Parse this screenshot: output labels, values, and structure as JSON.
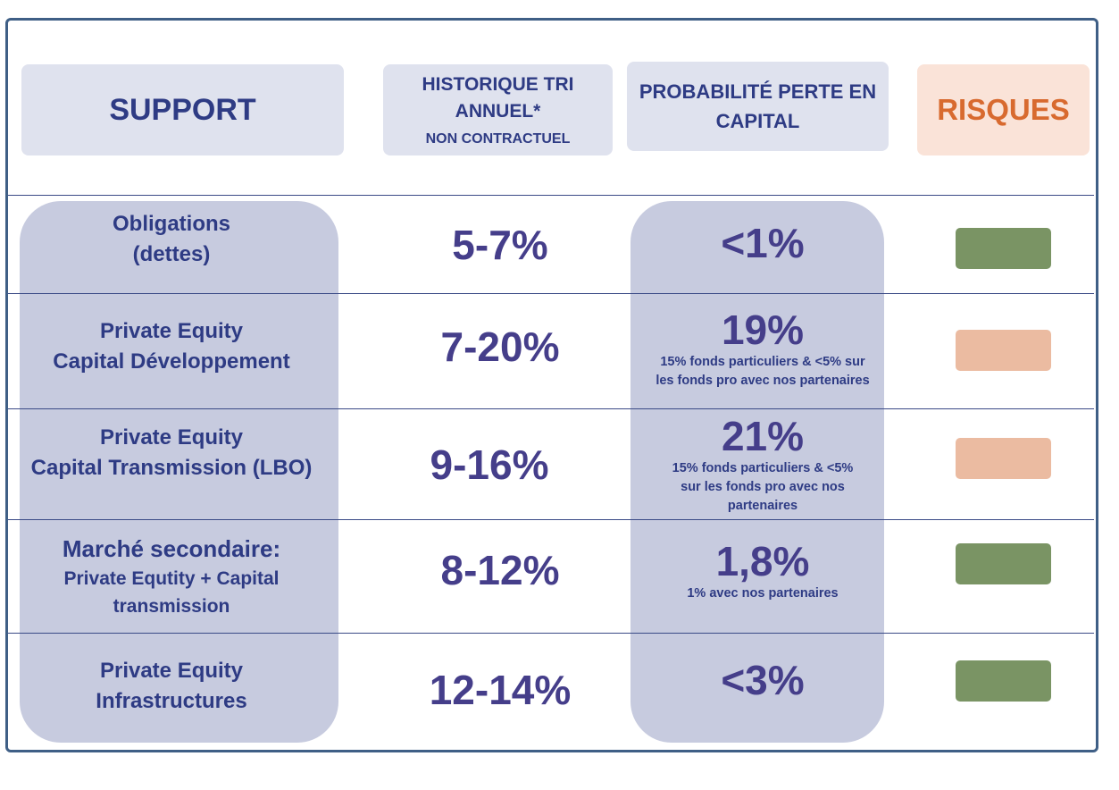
{
  "header": {
    "support": "SUPPORT",
    "tri_line1": "HISTORIQUE TRI",
    "tri_line2": "ANNUEL*",
    "tri_sub": "NON CONTRACTUEL",
    "prob_line1": "PROBABILITÉ PERTE EN",
    "prob_line2": "CAPITAL",
    "risk": "RISQUES"
  },
  "colors": {
    "green": "#7a9464",
    "orange": "#ebbba1"
  },
  "rows": [
    {
      "support": [
        "Obligations",
        "(dettes)"
      ],
      "tri": "5-7%",
      "prob": "<1%",
      "note": [],
      "risk_level": "low",
      "risk_color": "#7a9464"
    },
    {
      "support": [
        "Private Equity",
        "Capital Développement"
      ],
      "tri": "7-20%",
      "prob": "19%",
      "note": [
        "15% fonds particuliers & <5% sur",
        "les fonds pro avec nos partenaires"
      ],
      "risk_level": "medium",
      "risk_color": "#ebbba1"
    },
    {
      "support": [
        "Private Equity",
        "Capital Transmission (LBO)"
      ],
      "tri": "9-16%",
      "prob": "21%",
      "note": [
        "15% fonds particuliers & <5%",
        "sur les fonds pro avec nos",
        "partenaires"
      ],
      "risk_level": "medium",
      "risk_color": "#ebbba1"
    },
    {
      "support": [
        "Marché secondaire:",
        "Private Equtity + Capital",
        "transmission"
      ],
      "tri": "8-12%",
      "prob": "1,8%",
      "note": [
        "1% avec nos partenaires"
      ],
      "risk_level": "low",
      "risk_color": "#7a9464"
    },
    {
      "support": [
        "Private Equity",
        "Infrastructures"
      ],
      "tri": "12-14%",
      "prob": "<3%",
      "note": [],
      "risk_level": "low",
      "risk_color": "#7a9464"
    }
  ]
}
